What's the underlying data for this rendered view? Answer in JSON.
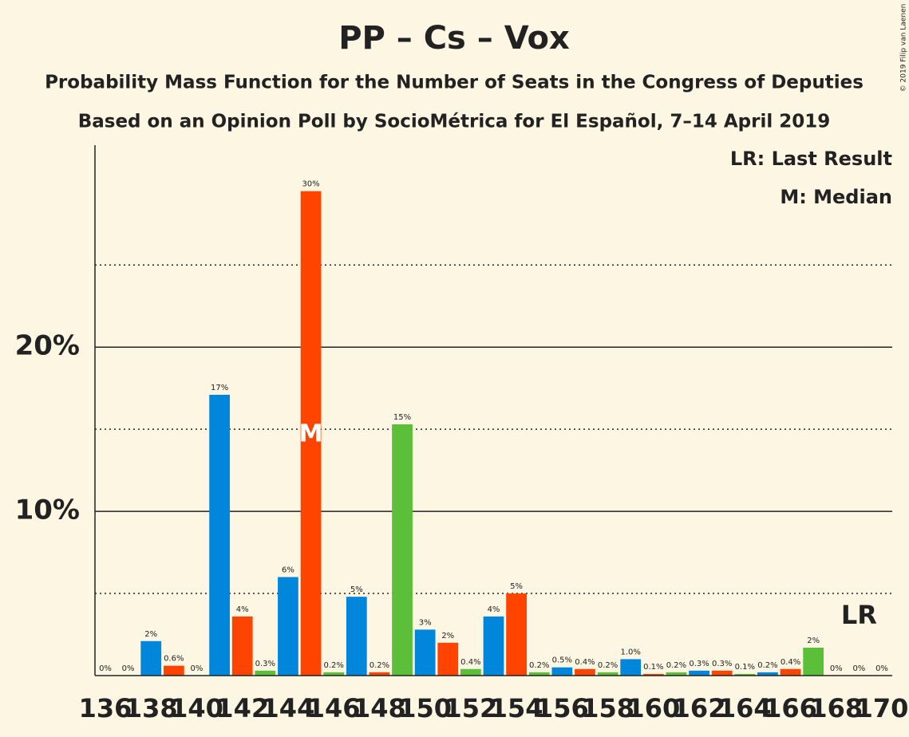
{
  "chart_data": {
    "type": "bar",
    "title": "PP – Cs – Vox",
    "subtitle": "Probability Mass Function for the Number of Seats in the Congress of Deputies",
    "subtitle2": "Based on an Opinion Poll by SocioMétrica for El Español, 7–14 April 2019",
    "copyright": "© 2019 Filip van Laenen",
    "legend": [
      "LR: Last Result",
      "M: Median"
    ],
    "median": {
      "x": 145,
      "label": "M"
    },
    "last_result": {
      "x": 169,
      "label": "LR"
    },
    "x": [
      136,
      137,
      138,
      139,
      140,
      141,
      142,
      143,
      144,
      145,
      146,
      147,
      148,
      149,
      150,
      151,
      152,
      153,
      154,
      155,
      156,
      157,
      158,
      159,
      160,
      161,
      162,
      163,
      164,
      165,
      166,
      167,
      168,
      169,
      170
    ],
    "values": [
      0,
      0,
      2.1,
      0.6,
      0,
      17.1,
      3.6,
      0.3,
      6.0,
      29.5,
      0.2,
      4.8,
      0.2,
      15.3,
      2.8,
      2.0,
      0.4,
      3.6,
      5.0,
      0.2,
      0.5,
      0.4,
      0.2,
      1.0,
      0.1,
      0.2,
      0.3,
      0.3,
      0.1,
      0.2,
      0.4,
      1.7,
      0,
      0,
      0
    ],
    "value_labels": [
      "0%",
      "0%",
      "2%",
      "0.6%",
      "0%",
      "17%",
      "4%",
      "0.3%",
      "6%",
      "30%",
      "0.2%",
      "5%",
      "0.2%",
      "15%",
      "3%",
      "2%",
      "0.4%",
      "4%",
      "5%",
      "0.2%",
      "0.5%",
      "0.4%",
      "0.2%",
      "1.0%",
      "0.1%",
      "0.2%",
      "0.3%",
      "0.3%",
      "0.1%",
      "0.2%",
      "0.4%",
      "2%",
      "0%",
      "0%",
      "0%"
    ],
    "colors": [
      "#ff4400",
      "#5bbf3a",
      "#0087dc",
      "#ff4400",
      "#5bbf3a",
      "#0087dc",
      "#ff4400",
      "#5bbf3a",
      "#0087dc",
      "#ff4400",
      "#5bbf3a",
      "#0087dc",
      "#ff4400",
      "#5bbf3a",
      "#0087dc",
      "#ff4400",
      "#5bbf3a",
      "#0087dc",
      "#ff4400",
      "#5bbf3a",
      "#0087dc",
      "#ff4400",
      "#5bbf3a",
      "#0087dc",
      "#ff4400",
      "#5bbf3a",
      "#0087dc",
      "#ff4400",
      "#5bbf3a",
      "#0087dc",
      "#ff4400",
      "#5bbf3a",
      "#0087dc",
      "#ff4400",
      "#5bbf3a"
    ],
    "xlim": [
      136,
      170
    ],
    "xticks": [
      136,
      138,
      140,
      142,
      144,
      146,
      148,
      150,
      152,
      154,
      156,
      158,
      160,
      162,
      164,
      166,
      168,
      170
    ],
    "ylim": [
      0,
      32.3
    ],
    "yticks": [
      {
        "value": 10,
        "label": "10%"
      },
      {
        "value": 20,
        "label": "20%"
      }
    ],
    "minor_yticks": [
      5,
      15,
      25
    ]
  }
}
